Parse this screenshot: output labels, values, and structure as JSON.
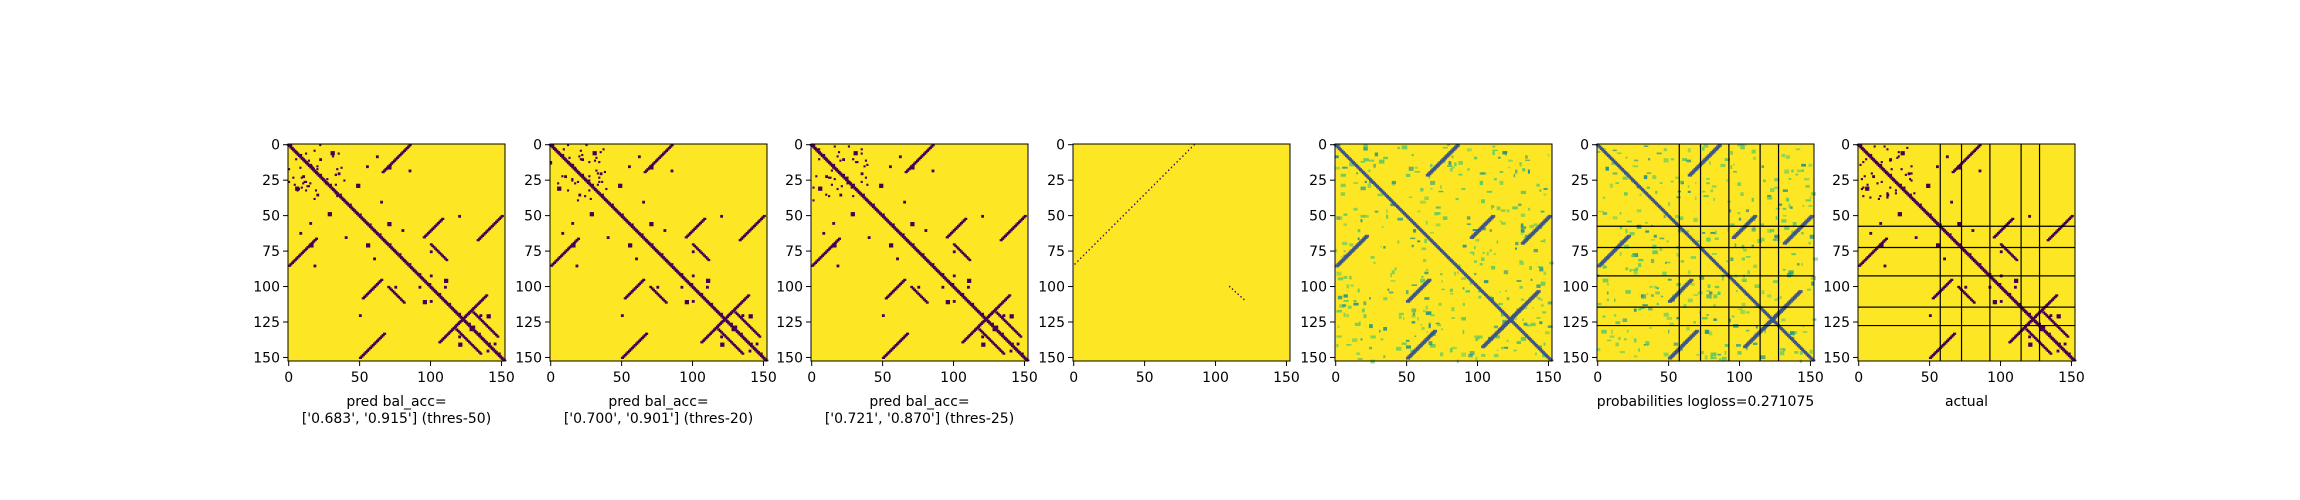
{
  "colors": {
    "dark": "#440154",
    "mid_dark": "#3b528b",
    "mid": "#21918c",
    "mid_light": "#5ec962",
    "bright": "#fde725"
  },
  "chart_data": [
    {
      "type": "heatmap",
      "kind": "binary",
      "threshold_label": "thres-50",
      "xlabel_lines": [
        "pred bal_acc=",
        "['0.683', '0.915'] (thres-50)"
      ],
      "xlim": [
        0,
        153
      ],
      "ylim": [
        153,
        0
      ],
      "xticks": [
        0,
        50,
        100,
        150
      ],
      "yticks": [
        0,
        25,
        50,
        75,
        100,
        125,
        150
      ],
      "grid": false
    },
    {
      "type": "heatmap",
      "kind": "binary",
      "threshold_label": "thres-20",
      "xlabel_lines": [
        "pred bal_acc=",
        "['0.700', '0.901'] (thres-20)"
      ],
      "xlim": [
        0,
        153
      ],
      "ylim": [
        153,
        0
      ],
      "xticks": [
        0,
        50,
        100,
        150
      ],
      "yticks": [
        0,
        25,
        50,
        75,
        100,
        125,
        150
      ],
      "grid": false
    },
    {
      "type": "heatmap",
      "kind": "binary",
      "threshold_label": "thres-25",
      "xlabel_lines": [
        "pred bal_acc=",
        "['0.721', '0.870'] (thres-25)"
      ],
      "xlim": [
        0,
        153
      ],
      "ylim": [
        153,
        0
      ],
      "xticks": [
        0,
        50,
        100,
        150
      ],
      "yticks": [
        0,
        25,
        50,
        75,
        100,
        125,
        150
      ],
      "grid": false
    },
    {
      "type": "heatmap",
      "kind": "sparse",
      "xlabel_lines": [],
      "xlim": [
        0,
        153
      ],
      "ylim": [
        153,
        0
      ],
      "xticks": [
        0,
        50,
        100,
        150
      ],
      "yticks": [
        0,
        25,
        50,
        75,
        100,
        125,
        150
      ],
      "grid": false
    },
    {
      "type": "heatmap",
      "kind": "probability",
      "xlabel_lines": [],
      "xlim": [
        0,
        153
      ],
      "ylim": [
        153,
        0
      ],
      "xticks": [
        0,
        50,
        100,
        150
      ],
      "yticks": [
        0,
        25,
        50,
        75,
        100,
        125,
        150
      ],
      "grid": false
    },
    {
      "type": "heatmap",
      "kind": "probability",
      "xlabel_lines": [
        "probabilities logloss=0.271075"
      ],
      "xlim": [
        0,
        153
      ],
      "ylim": [
        153,
        0
      ],
      "xticks": [
        0,
        50,
        100,
        150
      ],
      "yticks": [
        0,
        25,
        50,
        75,
        100,
        125,
        150
      ],
      "grid": false,
      "boundaries": [
        58,
        73,
        93,
        115,
        128
      ]
    },
    {
      "type": "heatmap",
      "kind": "binary",
      "xlabel_lines": [
        "actual"
      ],
      "xlim": [
        0,
        153
      ],
      "ylim": [
        153,
        0
      ],
      "xticks": [
        0,
        50,
        100,
        150
      ],
      "yticks": [
        0,
        25,
        50,
        75,
        100,
        125,
        150
      ],
      "grid": false,
      "boundaries": [
        58,
        73,
        93,
        115,
        128
      ]
    }
  ]
}
